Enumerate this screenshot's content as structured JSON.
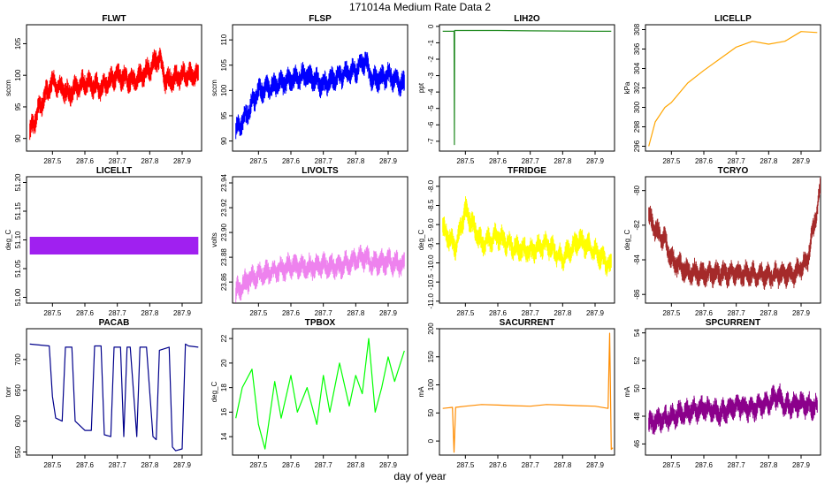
{
  "figure": {
    "title": "171014a   Medium Rate Data 2",
    "xlabel": "day of year"
  },
  "chart_data": [
    {
      "type": "line",
      "title": "FLWT",
      "xlabel": "",
      "ylabel": "sccm",
      "color": "#ff0000",
      "band": true,
      "xlim": [
        287.42,
        287.96
      ],
      "ylim": [
        88,
        108
      ],
      "xticks": [
        "287.5",
        "287.6",
        "287.7",
        "287.8",
        "287.9"
      ],
      "yticks": [
        "90",
        "95",
        "100",
        "105"
      ],
      "x": [
        287.43,
        287.47,
        287.5,
        287.55,
        287.6,
        287.65,
        287.7,
        287.75,
        287.8,
        287.83,
        287.85,
        287.9,
        287.95
      ],
      "y": [
        91,
        96,
        99,
        97,
        99,
        98,
        100,
        99,
        101,
        103,
        99,
        100,
        100
      ]
    },
    {
      "type": "line",
      "title": "FLSP",
      "xlabel": "",
      "ylabel": "sccm",
      "color": "#0000ff",
      "band": true,
      "xlim": [
        287.42,
        287.96
      ],
      "ylim": [
        88,
        113
      ],
      "xticks": [
        "287.5",
        "287.6",
        "287.7",
        "287.8",
        "287.9"
      ],
      "yticks": [
        "90",
        "95",
        "100",
        "105",
        "110"
      ],
      "x": [
        287.43,
        287.47,
        287.5,
        287.55,
        287.6,
        287.65,
        287.7,
        287.75,
        287.8,
        287.83,
        287.85,
        287.9,
        287.95
      ],
      "y": [
        92,
        96,
        100,
        101,
        102,
        103,
        101,
        103,
        104,
        106,
        102,
        103,
        101
      ]
    },
    {
      "type": "line",
      "title": "LIH2O",
      "xlabel": "",
      "ylabel": "ppt",
      "color": "#228b22",
      "band": false,
      "xlim": [
        287.42,
        287.96
      ],
      "ylim": [
        -7.6,
        0.1
      ],
      "xticks": [
        "287.5",
        "287.6",
        "287.7",
        "287.8",
        "287.9"
      ],
      "yticks": [
        "0",
        "-1",
        "-2",
        "-3",
        "-4",
        "-5",
        "-6",
        "-7"
      ],
      "x": [
        287.43,
        287.465,
        287.466,
        287.467,
        287.5,
        287.6,
        287.7,
        287.8,
        287.9,
        287.95
      ],
      "y": [
        -0.3,
        -0.3,
        -7.2,
        -0.25,
        -0.25,
        -0.25,
        -0.27,
        -0.28,
        -0.3,
        -0.3
      ]
    },
    {
      "type": "line",
      "title": "LICELLP",
      "xlabel": "",
      "ylabel": "kPa",
      "color": "#ffa500",
      "band": false,
      "xlim": [
        287.42,
        287.96
      ],
      "ylim": [
        295.5,
        308.5
      ],
      "xticks": [
        "287.5",
        "287.6",
        "287.7",
        "287.8",
        "287.9"
      ],
      "yticks": [
        "296",
        "298",
        "300",
        "302",
        "304",
        "306",
        "308"
      ],
      "x": [
        287.43,
        287.45,
        287.48,
        287.5,
        287.55,
        287.6,
        287.65,
        287.7,
        287.75,
        287.8,
        287.85,
        287.9,
        287.95
      ],
      "y": [
        296,
        298.5,
        300,
        300.5,
        302.5,
        303.8,
        305,
        306.2,
        306.8,
        306.5,
        306.8,
        307.8,
        307.7
      ]
    },
    {
      "type": "area",
      "title": "LICELLT",
      "xlabel": "",
      "ylabel": "deg_C",
      "color": "#a020f0",
      "band": true,
      "xlim": [
        287.42,
        287.96
      ],
      "ylim": [
        50.99,
        51.21
      ],
      "xticks": [
        "287.5",
        "287.6",
        "287.7",
        "287.8",
        "287.9"
      ],
      "yticks": [
        "51.00",
        "51.05",
        "51.10",
        "51.15",
        "51.20"
      ],
      "x": [
        287.43,
        287.95
      ],
      "y": [
        51.09,
        51.09
      ]
    },
    {
      "type": "line",
      "title": "LIVOLTS",
      "xlabel": "",
      "ylabel": "volts",
      "color": "#ee82ee",
      "band": true,
      "xlim": [
        287.42,
        287.96
      ],
      "ylim": [
        23.843,
        23.945
      ],
      "xticks": [
        "287.5",
        "287.6",
        "287.7",
        "287.8",
        "287.9"
      ],
      "yticks": [
        "23.86",
        "23.88",
        "23.90",
        "23.92",
        "23.94"
      ],
      "x": [
        287.43,
        287.47,
        287.5,
        287.55,
        287.6,
        287.65,
        287.7,
        287.75,
        287.8,
        287.83,
        287.85,
        287.9,
        287.95
      ],
      "y": [
        23.852,
        23.862,
        23.866,
        23.868,
        23.873,
        23.872,
        23.873,
        23.872,
        23.878,
        23.88,
        23.875,
        23.876,
        23.874
      ]
    },
    {
      "type": "line",
      "title": "TFRIDGE",
      "xlabel": "",
      "ylabel": "deg_C",
      "color": "#ffff00",
      "band": true,
      "xlim": [
        287.42,
        287.96
      ],
      "ylim": [
        -11.05,
        -7.75
      ],
      "xticks": [
        "287.5",
        "287.6",
        "287.7",
        "287.8",
        "287.9"
      ],
      "yticks": [
        "-8.0",
        "-8.5",
        "-9.0",
        "-9.5",
        "-10.0",
        "-10.5",
        "-11.0"
      ],
      "x": [
        287.43,
        287.47,
        287.5,
        287.55,
        287.6,
        287.65,
        287.7,
        287.75,
        287.8,
        287.85,
        287.9,
        287.95
      ],
      "y": [
        -9.1,
        -9.6,
        -8.6,
        -9.5,
        -9.3,
        -9.6,
        -9.7,
        -9.5,
        -9.9,
        -9.4,
        -9.7,
        -10.1
      ]
    },
    {
      "type": "line",
      "title": "TCRYO",
      "xlabel": "",
      "ylabel": "deg_C",
      "color": "#a52a2a",
      "band": true,
      "xlim": [
        287.42,
        287.96
      ],
      "ylim": [
        -86.5,
        -79.2
      ],
      "xticks": [
        "287.5",
        "287.6",
        "287.7",
        "287.8",
        "287.9"
      ],
      "yticks": [
        "-80",
        "-82",
        "-84",
        "-86"
      ],
      "x": [
        287.43,
        287.46,
        287.48,
        287.5,
        287.55,
        287.6,
        287.7,
        287.8,
        287.88,
        287.92,
        287.94,
        287.95,
        287.96
      ],
      "y": [
        -81.5,
        -82.5,
        -82.8,
        -84,
        -84.7,
        -84.8,
        -84.8,
        -84.9,
        -84.8,
        -84,
        -82,
        -81,
        -79.8
      ]
    },
    {
      "type": "line",
      "title": "PACAB",
      "xlabel": "",
      "ylabel": "torr",
      "color": "#00008b",
      "band": false,
      "xlim": [
        287.42,
        287.96
      ],
      "ylim": [
        545,
        750
      ],
      "xticks": [
        "287.5",
        "287.6",
        "287.7",
        "287.8",
        "287.9"
      ],
      "yticks": [
        "550",
        "600",
        "650",
        "700"
      ],
      "x": [
        287.43,
        287.49,
        287.5,
        287.51,
        287.53,
        287.54,
        287.56,
        287.57,
        287.6,
        287.62,
        287.63,
        287.65,
        287.66,
        287.68,
        287.69,
        287.71,
        287.72,
        287.73,
        287.74,
        287.76,
        287.77,
        287.79,
        287.81,
        287.82,
        287.83,
        287.86,
        287.87,
        287.88,
        287.9,
        287.91,
        287.92,
        287.95
      ],
      "y": [
        725,
        722,
        640,
        605,
        600,
        720,
        720,
        600,
        585,
        585,
        722,
        722,
        578,
        575,
        720,
        720,
        575,
        720,
        720,
        575,
        720,
        720,
        575,
        570,
        715,
        720,
        558,
        552,
        555,
        725,
        722,
        720
      ]
    },
    {
      "type": "line",
      "title": "TPBOX",
      "xlabel": "",
      "ylabel": "deg_C",
      "color": "#00ff00",
      "band": false,
      "xlim": [
        287.42,
        287.96
      ],
      "ylim": [
        12.5,
        22.8
      ],
      "xticks": [
        "287.5",
        "287.6",
        "287.7",
        "287.8",
        "287.9"
      ],
      "yticks": [
        "14",
        "16",
        "18",
        "20",
        "22"
      ],
      "x": [
        287.43,
        287.45,
        287.48,
        287.5,
        287.52,
        287.55,
        287.57,
        287.6,
        287.62,
        287.65,
        287.68,
        287.7,
        287.72,
        287.75,
        287.78,
        287.8,
        287.82,
        287.84,
        287.86,
        287.88,
        287.9,
        287.92,
        287.95
      ],
      "y": [
        15.5,
        18,
        19.5,
        15,
        13,
        18.5,
        15.5,
        19,
        16,
        18,
        15,
        19,
        16,
        20,
        16.5,
        19,
        17.5,
        22,
        16,
        18,
        20.5,
        18.5,
        21
      ]
    },
    {
      "type": "line",
      "title": "SACURRENT",
      "xlabel": "",
      "ylabel": "mA",
      "color": "#ff8c00",
      "band": false,
      "xlim": [
        287.42,
        287.96
      ],
      "ylim": [
        -25,
        200
      ],
      "xticks": [
        "287.5",
        "287.6",
        "287.7",
        "287.8",
        "287.9"
      ],
      "yticks": [
        "0",
        "50",
        "100",
        "150",
        "200"
      ],
      "x": [
        287.43,
        287.46,
        287.465,
        287.47,
        287.5,
        287.55,
        287.6,
        287.65,
        287.7,
        287.75,
        287.8,
        287.85,
        287.9,
        287.94,
        287.945,
        287.95,
        287.955
      ],
      "y": [
        58,
        60,
        -20,
        60,
        62,
        65,
        64,
        63,
        62,
        65,
        64,
        63,
        62,
        58,
        192,
        -15,
        -12
      ]
    },
    {
      "type": "line",
      "title": "SPCURRENT",
      "xlabel": "",
      "ylabel": "mA",
      "color": "#8b008b",
      "band": true,
      "xlim": [
        287.42,
        287.96
      ],
      "ylim": [
        45.2,
        54.3
      ],
      "xticks": [
        "287.5",
        "287.6",
        "287.7",
        "287.8",
        "287.9"
      ],
      "yticks": [
        "46",
        "48",
        "50",
        "52",
        "54"
      ],
      "x": [
        287.43,
        287.47,
        287.5,
        287.55,
        287.6,
        287.65,
        287.7,
        287.75,
        287.8,
        287.83,
        287.85,
        287.9,
        287.95
      ],
      "y": [
        47.5,
        47.8,
        48,
        48.3,
        48.6,
        48.2,
        48.8,
        48.5,
        49,
        49.5,
        48.7,
        48.9,
        48.6
      ]
    }
  ]
}
